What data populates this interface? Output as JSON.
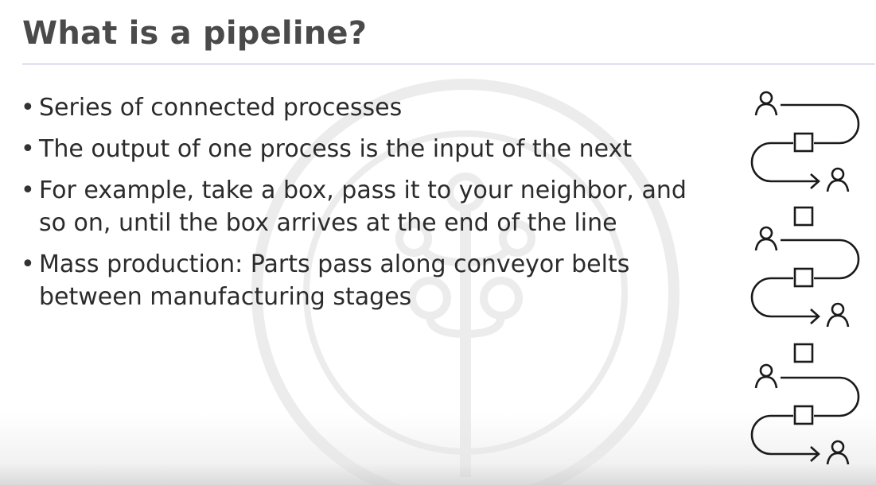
{
  "slide": {
    "title": "What is a pipeline?",
    "bullets": [
      {
        "text": "Series of connected processes"
      },
      {
        "text": "The output of one process is the input of the next"
      },
      {
        "text": "For example, take a box, pass it to your neighbor, and so on, until the box arrives at the end of the line"
      },
      {
        "text": "Mass production: Parts pass along conveyor belts between manufacturing stages"
      }
    ],
    "bullet_symbol": "•"
  },
  "colors": {
    "title": "#4a4a4a",
    "text": "#2b2b2b",
    "rule": "#b7b5dc",
    "watermark": "#e9e9e9",
    "icon_stroke": "#1a1a1a"
  },
  "icons": {
    "watermark": "tree-logo-watermark",
    "person": "person-icon",
    "box": "box-icon",
    "arrow": "arrow-right-icon"
  }
}
